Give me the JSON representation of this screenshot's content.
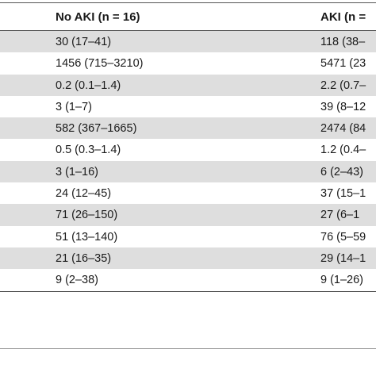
{
  "table": {
    "headers": [
      "No AKI (n = 16)",
      "AKI (n ="
    ],
    "rows": [
      [
        "30 (17–41)",
        "118 (38–"
      ],
      [
        "1456 (715–3210)",
        "5471 (23"
      ],
      [
        "0.2 (0.1–1.4)",
        "2.2 (0.7–"
      ],
      [
        "3 (1–7)",
        "39 (8–12"
      ],
      [
        "582 (367–1665)",
        "2474 (84"
      ],
      [
        "0.5 (0.3–1.4)",
        "1.2 (0.4–"
      ],
      [
        "3 (1–16)",
        "6 (2–43)"
      ],
      [
        "24 (12–45)",
        "37 (15–1"
      ],
      [
        "71 (26–150)",
        "27 (6–1"
      ],
      [
        "51 (13–140)",
        "76 (5–59"
      ],
      [
        "21 (16–35)",
        "29 (14–1"
      ],
      [
        "9 (2–38)",
        "9 (1–26)"
      ]
    ]
  }
}
